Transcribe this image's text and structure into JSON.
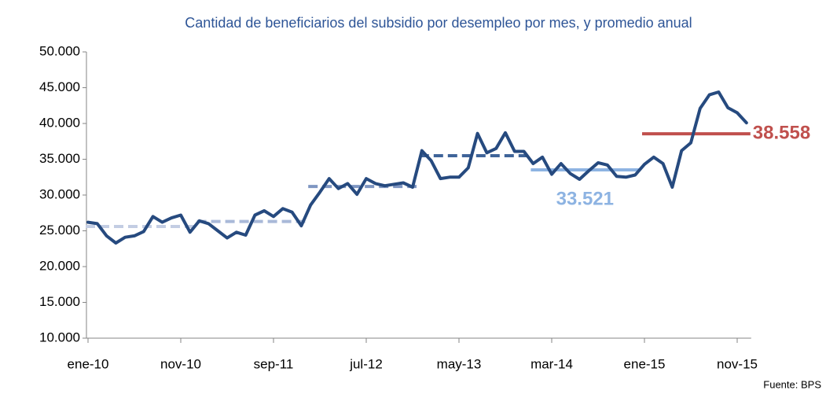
{
  "chart_data": {
    "type": "line",
    "title": "Cantidad de beneficiarios del subsidio por desempleo por mes, y promedio anual",
    "categories": [
      "ene-10",
      null,
      null,
      null,
      null,
      null,
      null,
      null,
      null,
      null,
      "nov-10",
      null,
      null,
      null,
      null,
      null,
      null,
      null,
      null,
      null,
      "sep-11",
      null,
      null,
      null,
      null,
      null,
      null,
      null,
      null,
      null,
      "jul-12",
      null,
      null,
      null,
      null,
      null,
      null,
      null,
      null,
      null,
      "may-13",
      null,
      null,
      null,
      null,
      null,
      null,
      null,
      null,
      null,
      "mar-14",
      null,
      null,
      null,
      null,
      null,
      null,
      null,
      null,
      null,
      "ene-15",
      null,
      null,
      null,
      null,
      null,
      null,
      null,
      null,
      null,
      "nov-15",
      null
    ],
    "series": [
      {
        "color": "#264a7f",
        "values": [
          26200,
          26000,
          24300,
          23300,
          24100,
          24300,
          24900,
          27000,
          26200,
          26800,
          27200,
          24800,
          26400,
          26000,
          25000,
          24000,
          24800,
          24400,
          27200,
          27800,
          27000,
          28100,
          27600,
          25700,
          28600,
          30400,
          32300,
          30900,
          31600,
          30100,
          32300,
          31600,
          31300,
          31500,
          31700,
          31100,
          36200,
          34800,
          32300,
          32500,
          32500,
          33800,
          38600,
          35900,
          36500,
          38700,
          36100,
          36100,
          34400,
          35300,
          32900,
          34400,
          33000,
          32200,
          33400,
          34500,
          34200,
          32600,
          32500,
          32800,
          34300,
          35300,
          34400,
          31100,
          36200,
          37300,
          42100,
          44000,
          44400,
          42200,
          41500,
          40100
        ]
      }
    ],
    "averages": [
      {
        "value": 25600,
        "color": "#c3cde3",
        "dashed": true
      },
      {
        "value": 26300,
        "color": "#a9b9d8",
        "dashed": true
      },
      {
        "value": 31200,
        "color": "#7f96c2",
        "dashed": true
      },
      {
        "value": 35500,
        "color": "#3f6499",
        "dashed": true
      },
      {
        "value": 33521,
        "value_label": "33.521",
        "color": "#8db3e2",
        "dashed": false
      },
      {
        "value": 38558,
        "value_label": "38.558",
        "color": "#c0504d",
        "dashed": false
      }
    ],
    "ylim": [
      10000,
      50000
    ],
    "yticks": [
      {
        "value": 10000,
        "label": "10.000"
      },
      {
        "value": 15000,
        "label": "15.000"
      },
      {
        "value": 20000,
        "label": "20.000"
      },
      {
        "value": 25000,
        "label": "25.000"
      },
      {
        "value": 30000,
        "label": "30.000"
      },
      {
        "value": 35000,
        "label": "35.000"
      },
      {
        "value": 40000,
        "label": "40.000"
      },
      {
        "value": 45000,
        "label": "45.000"
      },
      {
        "value": 50000,
        "label": "50.000"
      }
    ],
    "source": "Fuente: BPS"
  }
}
